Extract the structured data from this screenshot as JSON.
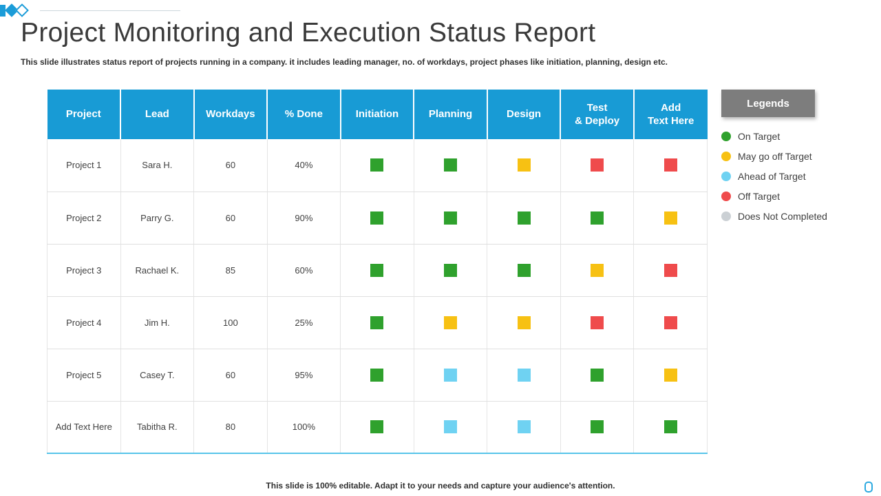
{
  "slide": {
    "title": "Project Monitoring and Execution Status Report",
    "subtitle": "This slide illustrates status report of projects running in a company. it includes leading manager, no. of workdays, project phases like initiation, planning, design etc.",
    "footer": "This slide is 100% editable. Adapt it to your needs and capture your audience's attention."
  },
  "table": {
    "headers": [
      "Project",
      "Lead",
      "Workdays",
      "% Done",
      "Initiation",
      "Planning",
      "Design",
      "Test\n& Deploy",
      "Add\nText Here"
    ],
    "rows": [
      {
        "project": "Project 1",
        "lead": "Sara H.",
        "workdays": "60",
        "done": "40%",
        "statuses": [
          "green",
          "green",
          "yellow",
          "red",
          "red"
        ]
      },
      {
        "project": "Project 2",
        "lead": "Parry G.",
        "workdays": "60",
        "done": "90%",
        "statuses": [
          "green",
          "green",
          "green",
          "green",
          "yellow"
        ]
      },
      {
        "project": "Project 3",
        "lead": "Rachael K.",
        "workdays": "85",
        "done": "60%",
        "statuses": [
          "green",
          "green",
          "green",
          "yellow",
          "red"
        ]
      },
      {
        "project": "Project 4",
        "lead": "Jim H.",
        "workdays": "100",
        "done": "25%",
        "statuses": [
          "green",
          "yellow",
          "yellow",
          "red",
          "red"
        ]
      },
      {
        "project": "Project 5",
        "lead": "Casey T.",
        "workdays": "60",
        "done": "95%",
        "statuses": [
          "green",
          "lightblue",
          "lightblue",
          "green",
          "yellow"
        ]
      },
      {
        "project": "Add Text Here",
        "lead": "Tabitha R.",
        "workdays": "80",
        "done": "100%",
        "statuses": [
          "green",
          "lightblue",
          "lightblue",
          "green",
          "green"
        ]
      }
    ]
  },
  "legend": {
    "title": "Legends",
    "items": [
      {
        "color": "green",
        "label": "On Target"
      },
      {
        "color": "yellow",
        "label": "May go off Target"
      },
      {
        "color": "lightblue",
        "label": "Ahead of Target"
      },
      {
        "color": "red",
        "label": "Off Target"
      },
      {
        "color": "gray",
        "label": "Does Not Completed"
      }
    ]
  },
  "colors": {
    "header_blue": "#189bd5",
    "on_target_green": "#2fa12d",
    "may_go_off_yellow": "#f7c113",
    "ahead_lightblue": "#6fd2f2",
    "off_target_red": "#ef4b4c",
    "not_completed_gray": "#cbd0d4",
    "legend_header_gray": "#7d7d7d",
    "table_bottom_line": "#56c4e9"
  }
}
